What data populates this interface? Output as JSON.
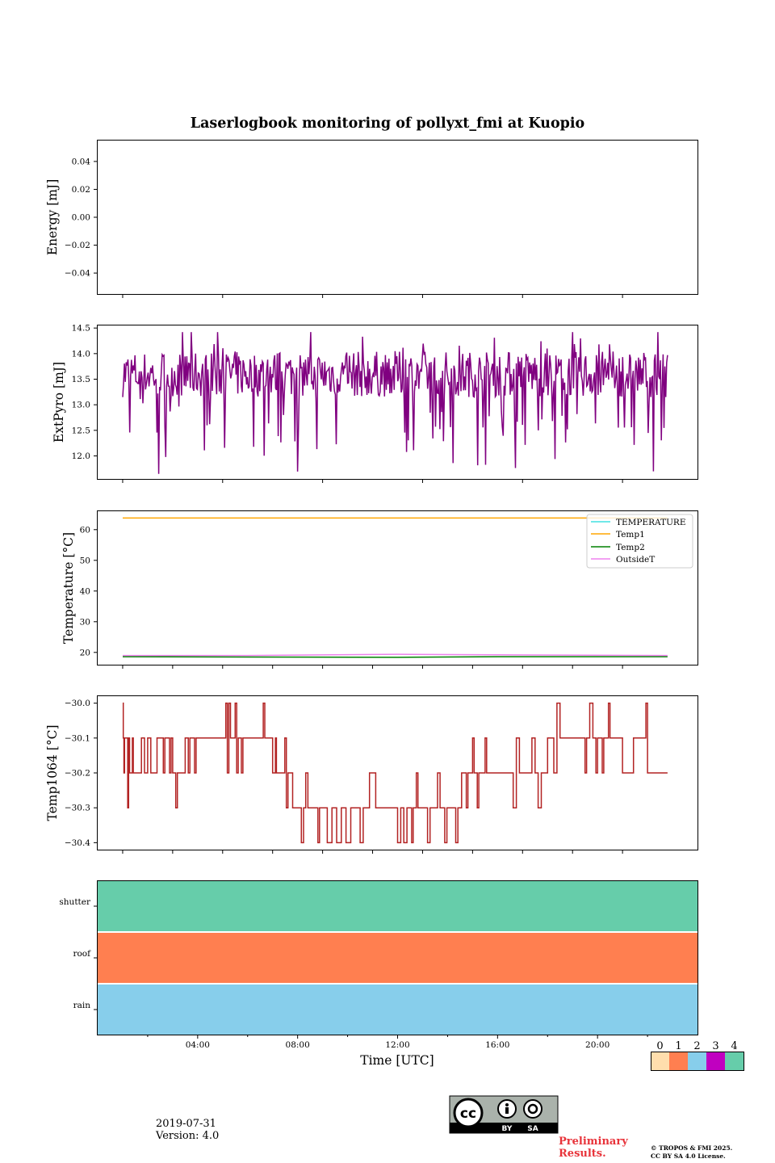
{
  "figure": {
    "title": "Laserlogbook monitoring of pollyxt_fmi at Kuopio",
    "date": "2019-07-31",
    "version": "Version: 4.0",
    "preliminary_line1": "Preliminary",
    "preliminary_line2": "Results.",
    "copyright_line1": "© TROPOS & FMI 2025.",
    "copyright_line2": "CC BY SA 4.0 License.",
    "license_badge": {
      "by": "BY",
      "sa": "SA",
      "cc": "cc"
    }
  },
  "chart_data": [
    {
      "type": "line",
      "id": "energy",
      "ylabel": "Energy [mJ]",
      "ylim": [
        -0.055,
        0.055
      ],
      "yticks": [
        0.04,
        0.02,
        0.0,
        -0.02,
        -0.04
      ],
      "ytick_labels": [
        "0.04",
        "0.02",
        "0.00",
        "−0.02",
        "−0.04"
      ],
      "series": []
    },
    {
      "type": "line",
      "id": "extpyro",
      "ylabel": "ExtPyro [mJ]",
      "ylim": [
        11.55,
        14.55
      ],
      "yticks": [
        12.0,
        12.5,
        13.0,
        13.5,
        14.0,
        14.5
      ],
      "ytick_labels": [
        "12.0",
        "12.5",
        "13.0",
        "13.5",
        "14.0",
        "14.5"
      ],
      "series": [
        {
          "name": "ExtPyro",
          "color": "#800080",
          "x_range": [
            1.0,
            22.8
          ],
          "typical": 13.6,
          "min": 11.65,
          "max": 14.42
        }
      ]
    },
    {
      "type": "line",
      "id": "temperature",
      "ylabel": "Temperature [°C]",
      "ylim": [
        16,
        66
      ],
      "yticks": [
        20,
        30,
        40,
        50,
        60
      ],
      "ytick_labels": [
        "20",
        "30",
        "40",
        "50",
        "60"
      ],
      "legend_loc": "top-right",
      "series": [
        {
          "name": "TEMPERATURE",
          "color": "#40e0e0",
          "x": [
            1.0,
            22.8
          ],
          "y": [
            null,
            null
          ]
        },
        {
          "name": "Temp1",
          "color": "#ffa500",
          "x": [
            1.0,
            22.8
          ],
          "y": [
            63.8,
            63.8
          ]
        },
        {
          "name": "Temp2",
          "color": "#008000",
          "x": [
            1.0,
            6,
            12,
            16,
            22.8
          ],
          "y": [
            18.6,
            18.5,
            18.4,
            18.6,
            18.6
          ]
        },
        {
          "name": "OutsideT",
          "color": "#ee82ee",
          "x": [
            1.0,
            6,
            12,
            16,
            22.8
          ],
          "y": [
            19.0,
            19.0,
            19.4,
            19.2,
            19.0
          ]
        }
      ]
    },
    {
      "type": "line",
      "id": "temp1064",
      "ylabel": "Temp1064 [°C]",
      "ylim": [
        -30.42,
        -29.98
      ],
      "yticks": [
        -30.0,
        -30.1,
        -30.2,
        -30.3,
        -30.4
      ],
      "ytick_labels": [
        "−30.0",
        "−30.1",
        "−30.2",
        "−30.3",
        "−30.4"
      ],
      "series": [
        {
          "name": "Temp1064",
          "color": "#b22222",
          "x": [
            1.0,
            1.2,
            1.5,
            2.5,
            3.0,
            3.5,
            4.0,
            5.0,
            5.5,
            6.0,
            6.5,
            7.0,
            7.3,
            7.8,
            8.5,
            9.0,
            10.5,
            11.5,
            12.5,
            13.0,
            13.8,
            14.5,
            15.0,
            15.5,
            16.0,
            17.0,
            18.0,
            19.0,
            19.5,
            20.0,
            20.5,
            21.0,
            21.5,
            22.0,
            22.8
          ],
          "y": [
            -30.1,
            -30.2,
            -30.2,
            -30.1,
            -30.2,
            -30.1,
            -30.1,
            -30.1,
            -30.1,
            -30.1,
            -30.1,
            -30.2,
            -30.2,
            -30.3,
            -30.3,
            -30.3,
            -30.3,
            -30.3,
            -30.3,
            -30.3,
            -30.3,
            -30.2,
            -30.2,
            -30.2,
            -30.2,
            -30.2,
            -30.1,
            -30.1,
            -30.1,
            -30.1,
            -30.1,
            -30.2,
            -30.1,
            -30.2,
            -30.2
          ]
        }
      ]
    },
    {
      "type": "heatmap",
      "id": "status",
      "rows": [
        "shutter",
        "roof",
        "rain"
      ],
      "row_values": [
        4,
        1,
        2
      ],
      "xlabel": "Time [UTC]",
      "xlim": [
        0,
        24
      ],
      "xticks": [
        4,
        8,
        12,
        16,
        20
      ],
      "xtick_labels": [
        "04:00",
        "08:00",
        "12:00",
        "16:00",
        "20:00"
      ],
      "colorbar": {
        "labels": [
          "0",
          "1",
          "2",
          "3",
          "4"
        ],
        "colors": [
          "#ffdead",
          "#ff7f50",
          "#87ceeb",
          "#c000c0",
          "#66cdaa"
        ]
      }
    }
  ]
}
